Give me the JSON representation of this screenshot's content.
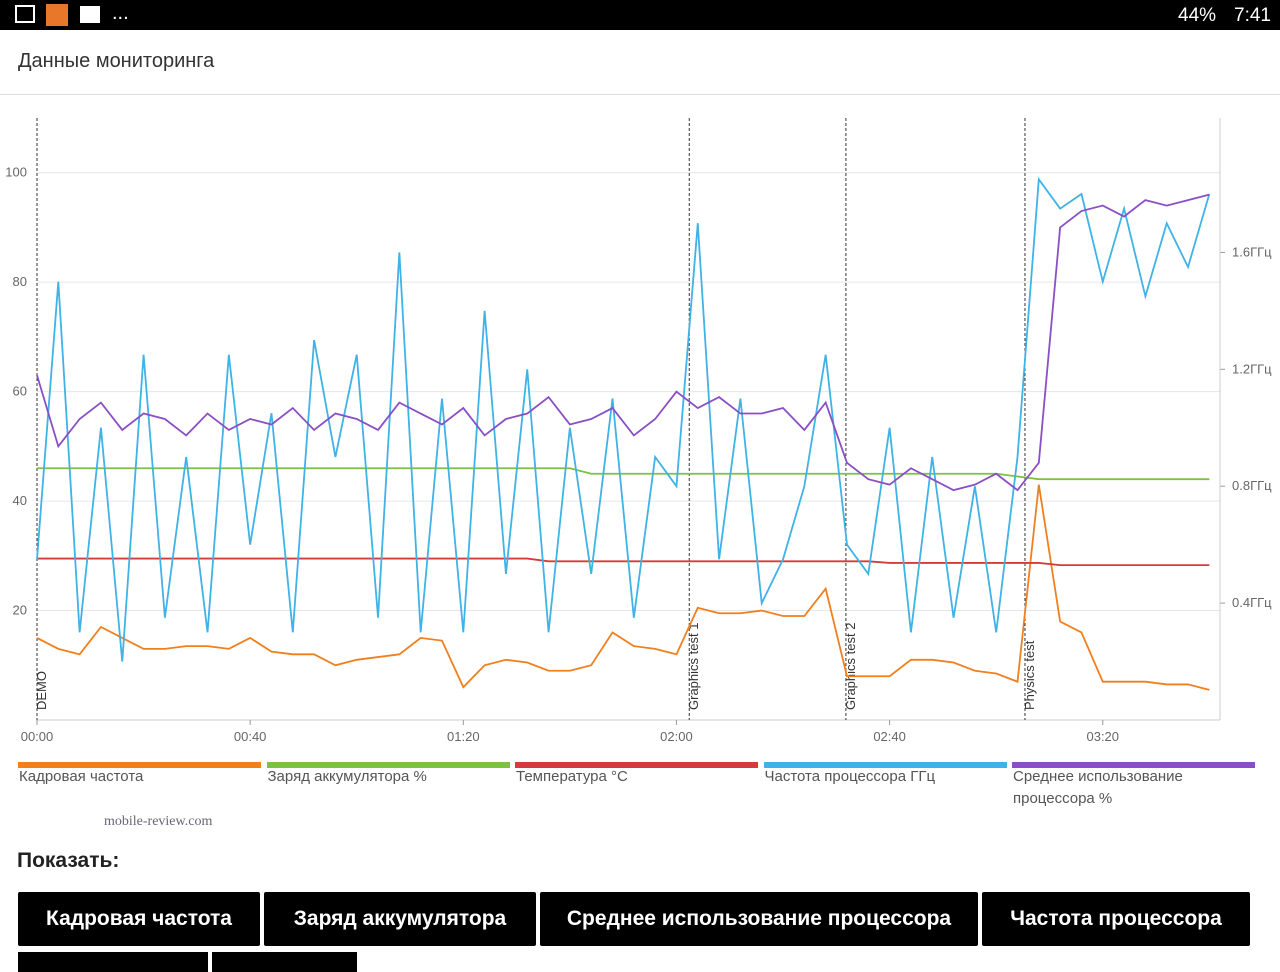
{
  "status_bar": {
    "more": "...",
    "battery": "44%",
    "time": "7:41"
  },
  "header": {
    "title": "Данные мониторинга"
  },
  "chart_data": {
    "type": "line",
    "x": [
      0,
      4,
      8,
      12,
      16,
      20,
      24,
      28,
      32,
      36,
      40,
      44,
      48,
      52,
      56,
      60,
      64,
      68,
      72,
      76,
      80,
      84,
      88,
      92,
      96,
      100,
      104,
      108,
      112,
      116,
      120,
      124,
      128,
      132,
      136,
      140,
      144,
      148,
      152,
      156,
      160,
      164,
      168,
      172,
      176,
      180,
      184,
      188,
      192,
      196,
      200,
      204,
      208,
      212,
      216,
      220
    ],
    "xlim": [
      0,
      222
    ],
    "xticks": [
      {
        "value": 0,
        "label": "00:00"
      },
      {
        "value": 40,
        "label": "00:40"
      },
      {
        "value": 80,
        "label": "01:20"
      },
      {
        "value": 120,
        "label": "02:00"
      },
      {
        "value": 160,
        "label": "02:40"
      },
      {
        "value": 200,
        "label": "03:20"
      }
    ],
    "ylim": [
      0,
      110
    ],
    "yticks": [
      20,
      40,
      60,
      80,
      100
    ],
    "y2lim": [
      0,
      2.06
    ],
    "y2ticks": [
      {
        "value": 0.4,
        "label": "0.4ГГц"
      },
      {
        "value": 0.8,
        "label": "0.8ГГц"
      },
      {
        "value": 1.2,
        "label": "1.2ГГц"
      },
      {
        "value": 1.6,
        "label": "1.6ГГц"
      }
    ],
    "grid": true,
    "annotations": [
      {
        "x": 0,
        "text": "DEMO"
      },
      {
        "x": 122.4,
        "text": "Graphics test 1"
      },
      {
        "x": 151.8,
        "text": "Graphics test 2"
      },
      {
        "x": 185.4,
        "text": "Physics test"
      }
    ],
    "series": [
      {
        "name": "Кадровая частота",
        "color": "#f07f1e",
        "values": [
          15,
          13,
          12,
          17,
          15,
          13,
          13,
          13.5,
          13.5,
          13,
          15,
          12.5,
          12,
          12,
          10,
          11,
          11.5,
          12,
          15,
          14.5,
          6,
          10,
          11,
          10.5,
          9,
          9,
          10,
          16,
          13.5,
          13,
          12,
          20.5,
          19.5,
          19.5,
          20,
          19,
          19,
          24,
          8,
          8,
          8,
          11,
          11,
          10.5,
          9,
          8.5,
          7,
          43,
          18,
          16,
          7,
          7,
          7,
          6.5,
          6.5,
          5.5
        ]
      },
      {
        "name": "Заряд аккумулятора %",
        "color": "#7cc142",
        "values": [
          46,
          46,
          46,
          46,
          46,
          46,
          46,
          46,
          46,
          46,
          46,
          46,
          46,
          46,
          46,
          46,
          46,
          46,
          46,
          46,
          46,
          46,
          46,
          46,
          46,
          46,
          45,
          45,
          45,
          45,
          45,
          45,
          45,
          45,
          45,
          45,
          45,
          45,
          45,
          45,
          45,
          45,
          45,
          45,
          45,
          45,
          44.5,
          44,
          44,
          44,
          44,
          44,
          44,
          44,
          44,
          44
        ]
      },
      {
        "name": "Температура °C",
        "color": "#d63a3a",
        "values": [
          29.5,
          29.5,
          29.5,
          29.5,
          29.5,
          29.5,
          29.5,
          29.5,
          29.5,
          29.5,
          29.5,
          29.5,
          29.5,
          29.5,
          29.5,
          29.5,
          29.5,
          29.5,
          29.5,
          29.5,
          29.5,
          29.5,
          29.5,
          29.5,
          29,
          29,
          29,
          29,
          29,
          29,
          29,
          29,
          29,
          29,
          29,
          29,
          29,
          29,
          29,
          29,
          28.7,
          28.7,
          28.7,
          28.7,
          28.7,
          28.7,
          28.7,
          28.7,
          28.3,
          28.3,
          28.3,
          28.3,
          28.3,
          28.3,
          28.3,
          28.3
        ]
      },
      {
        "name": "Частота процессора ГГц",
        "color": "#3fb2e6",
        "axis": "y2",
        "values": [
          0.55,
          1.5,
          0.3,
          1.0,
          0.2,
          1.25,
          0.35,
          0.9,
          0.3,
          1.25,
          0.6,
          1.05,
          0.3,
          1.3,
          0.9,
          1.25,
          0.35,
          1.6,
          0.3,
          1.1,
          0.3,
          1.4,
          0.5,
          1.2,
          0.3,
          1.0,
          0.5,
          1.1,
          0.35,
          0.9,
          0.8,
          1.7,
          0.55,
          1.1,
          0.4,
          0.55,
          0.8,
          1.25,
          0.6,
          0.5,
          1.0,
          0.3,
          0.9,
          0.35,
          0.8,
          0.3,
          0.9,
          1.85,
          1.75,
          1.8,
          1.5,
          1.75,
          1.45,
          1.7,
          1.55,
          1.8
        ]
      },
      {
        "name": "Среднее использование процессора %",
        "color": "#8a4fc4",
        "values": [
          63,
          50,
          55,
          58,
          53,
          56,
          55,
          52,
          56,
          53,
          55,
          54,
          57,
          53,
          56,
          55,
          53,
          58,
          56,
          54,
          57,
          52,
          55,
          56,
          59,
          54,
          55,
          57,
          52,
          55,
          60,
          57,
          59,
          56,
          56,
          57,
          53,
          58,
          47,
          44,
          43,
          46,
          44,
          42,
          43,
          45,
          42,
          47,
          90,
          93,
          94,
          92,
          95,
          94,
          95,
          96
        ]
      }
    ]
  },
  "watermark": "mobile-review.com",
  "show": {
    "label": "Показать:",
    "buttons": [
      "Кадровая частота",
      "Заряд аккумулятора",
      "Среднее использование процессора",
      "Частота процессора"
    ]
  }
}
